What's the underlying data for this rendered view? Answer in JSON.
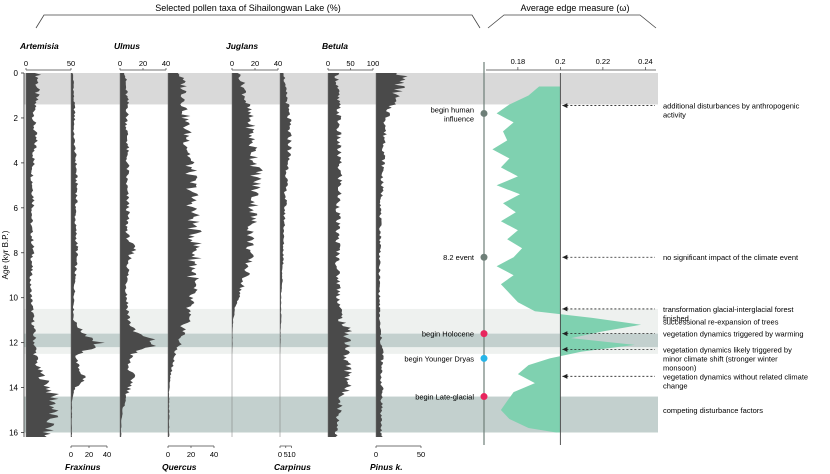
{
  "chart_data": {
    "type": "area",
    "panel_left_title": "Selected pollen taxa of Sihailongwan Lake (%)",
    "panel_right_title": "Average edge measure (ω)",
    "ylabel": "Age (kyr B.P.)",
    "ylim": [
      0,
      16.2
    ],
    "yticks": [
      0,
      2,
      4,
      6,
      8,
      10,
      12,
      14,
      16
    ],
    "shading": [
      {
        "name": "anthropogenic",
        "from": 0,
        "to": 1.4,
        "color": "#d9d9d9"
      },
      {
        "name": "transition",
        "from": 10.5,
        "to": 12.5,
        "color": "#eef1ef"
      },
      {
        "name": "holocene-band",
        "from": 11.6,
        "to": 12.2,
        "color": "#c3d0ce"
      },
      {
        "name": "lateglacial-band",
        "from": 14.4,
        "to": 16.0,
        "color": "#c3d0ce"
      }
    ],
    "taxa": [
      {
        "name": "Artemisia",
        "label_pos": "top",
        "ticks": [
          0,
          50
        ],
        "max": 50,
        "values": [
          14,
          13,
          12,
          10,
          9,
          10,
          11,
          9,
          8,
          7,
          8,
          9,
          7,
          6,
          7,
          8,
          7,
          6,
          5,
          6,
          7,
          8,
          9,
          10,
          11,
          13,
          20,
          28,
          33,
          30,
          27,
          22
        ]
      },
      {
        "name": "Fraxinus",
        "label_pos": "bottom",
        "ticks": [
          0,
          20,
          40
        ],
        "max": 40,
        "values": [
          2,
          3,
          3,
          4,
          4,
          3,
          4,
          5,
          6,
          6,
          7,
          6,
          5,
          5,
          6,
          7,
          6,
          5,
          4,
          4,
          3,
          3,
          12,
          34,
          6,
          8,
          16,
          3,
          1,
          1,
          1,
          1
        ]
      },
      {
        "name": "Ulmus",
        "label_pos": "top",
        "ticks": [
          0,
          20,
          40
        ],
        "max": 40,
        "values": [
          5,
          5,
          6,
          7,
          6,
          6,
          7,
          6,
          7,
          6,
          6,
          7,
          7,
          6,
          7,
          12,
          8,
          7,
          6,
          6,
          7,
          8,
          12,
          32,
          10,
          7,
          12,
          8,
          4,
          2,
          1,
          1
        ]
      },
      {
        "name": "Quercus",
        "label_pos": "bottom",
        "ticks": [
          0,
          20,
          40
        ],
        "max": 40,
        "values": [
          10,
          14,
          15,
          15,
          16,
          17,
          18,
          19,
          20,
          21,
          22,
          22,
          23,
          23,
          24,
          25,
          24,
          23,
          22,
          20,
          18,
          16,
          14,
          10,
          6,
          4,
          2,
          1,
          1,
          1,
          1,
          1
        ]
      },
      {
        "name": "Juglans",
        "label_pos": "top",
        "ticks": [
          0,
          20,
          40
        ],
        "max": 40,
        "values": [
          6,
          10,
          12,
          14,
          16,
          17,
          18,
          20,
          22,
          22,
          21,
          20,
          19,
          18,
          17,
          16,
          15,
          13,
          10,
          6,
          3,
          1,
          0.5,
          0.5,
          0,
          0,
          0,
          0,
          0,
          0,
          0,
          0
        ]
      },
      {
        "name": "Carpinus",
        "label_pos": "bottom",
        "ticks": [
          0,
          5,
          10
        ],
        "max": 10,
        "values": [
          4,
          4,
          6,
          7,
          8,
          8,
          9,
          8,
          7,
          6,
          5,
          5,
          4,
          4,
          3,
          3,
          3,
          2,
          2,
          1,
          1,
          1,
          0.5,
          0.5,
          0,
          0,
          0,
          0,
          0,
          0,
          0,
          0
        ]
      },
      {
        "name": "Betula",
        "label_pos": "top",
        "ticks": [
          0,
          50,
          100
        ],
        "max": 100,
        "values": [
          20,
          22,
          22,
          24,
          25,
          24,
          24,
          25,
          26,
          28,
          26,
          24,
          24,
          22,
          22,
          24,
          22,
          22,
          25,
          25,
          27,
          30,
          45,
          48,
          40,
          45,
          50,
          40,
          30,
          25,
          22,
          20
        ]
      },
      {
        "name": "Pinus k.",
        "label_pos": "bottom",
        "ticks": [
          0,
          50
        ],
        "max": 50,
        "values": [
          30,
          28,
          22,
          16,
          12,
          10,
          10,
          9,
          8,
          7,
          7,
          6,
          5,
          5,
          5,
          5,
          4,
          4,
          4,
          4,
          4,
          4,
          5,
          6,
          8,
          6,
          6,
          7,
          7,
          6,
          6,
          6
        ]
      }
    ],
    "edge_measure": {
      "xticks": [
        0.18,
        0.2,
        0.22,
        0.24
      ],
      "xlim": [
        0.165,
        0.245
      ],
      "baseline": 0.2,
      "color": "#7fd1b0",
      "ages": [
        0.6,
        1.0,
        1.4,
        1.8,
        2.2,
        2.6,
        3.0,
        3.4,
        3.8,
        4.2,
        4.6,
        5.0,
        5.4,
        5.8,
        6.2,
        6.6,
        7.0,
        7.4,
        7.8,
        8.2,
        8.6,
        9.0,
        9.4,
        9.8,
        10.2,
        10.6,
        10.9,
        11.2,
        11.5,
        11.8,
        12.1,
        12.4,
        12.7,
        13.0,
        13.4,
        13.8,
        14.2,
        14.6,
        15.0,
        15.4,
        15.8,
        16.0
      ],
      "values": [
        0.19,
        0.185,
        0.176,
        0.17,
        0.178,
        0.173,
        0.175,
        0.168,
        0.176,
        0.172,
        0.18,
        0.17,
        0.181,
        0.173,
        0.179,
        0.172,
        0.18,
        0.175,
        0.182,
        0.178,
        0.17,
        0.178,
        0.172,
        0.176,
        0.18,
        0.188,
        0.215,
        0.238,
        0.22,
        0.205,
        0.235,
        0.21,
        0.195,
        0.185,
        0.18,
        0.188,
        0.178,
        0.175,
        0.172,
        0.176,
        0.185,
        0.198
      ]
    },
    "events": [
      {
        "label": "begin human influence",
        "age": 1.8,
        "color": "#6e7f78"
      },
      {
        "label": "8.2 event",
        "age": 8.2,
        "color": "#6e7f78"
      },
      {
        "label": "begin Holocene",
        "age": 11.6,
        "color": "#e8265e"
      },
      {
        "label": "begin Younger Dryas",
        "age": 12.7,
        "color": "#26b5e8"
      },
      {
        "label": "begin Late-glacial",
        "age": 14.4,
        "color": "#e8265e"
      }
    ],
    "annotations": [
      {
        "text": "additional disturbances by anthropogenic activity",
        "age": 1.45
      },
      {
        "text": "no significant impact of the climate event",
        "age": 8.2
      },
      {
        "text": "transformation glacial-interglacial forest finished",
        "age": 10.5
      },
      {
        "text": "successional re-expansion of trees",
        "age": 11.05,
        "no_arrow": true
      },
      {
        "text": "vegetation dynamics triggered by warming",
        "age": 11.6
      },
      {
        "text": "vegetation dynamics likely triggered by minor climate shift (stronger winter monsoon)",
        "age": 12.3
      },
      {
        "text": "vegetation dynamics without related climate change",
        "age": 13.5
      },
      {
        "text": "competing disturbance factors",
        "age": 15.0,
        "no_arrow": true
      }
    ]
  }
}
